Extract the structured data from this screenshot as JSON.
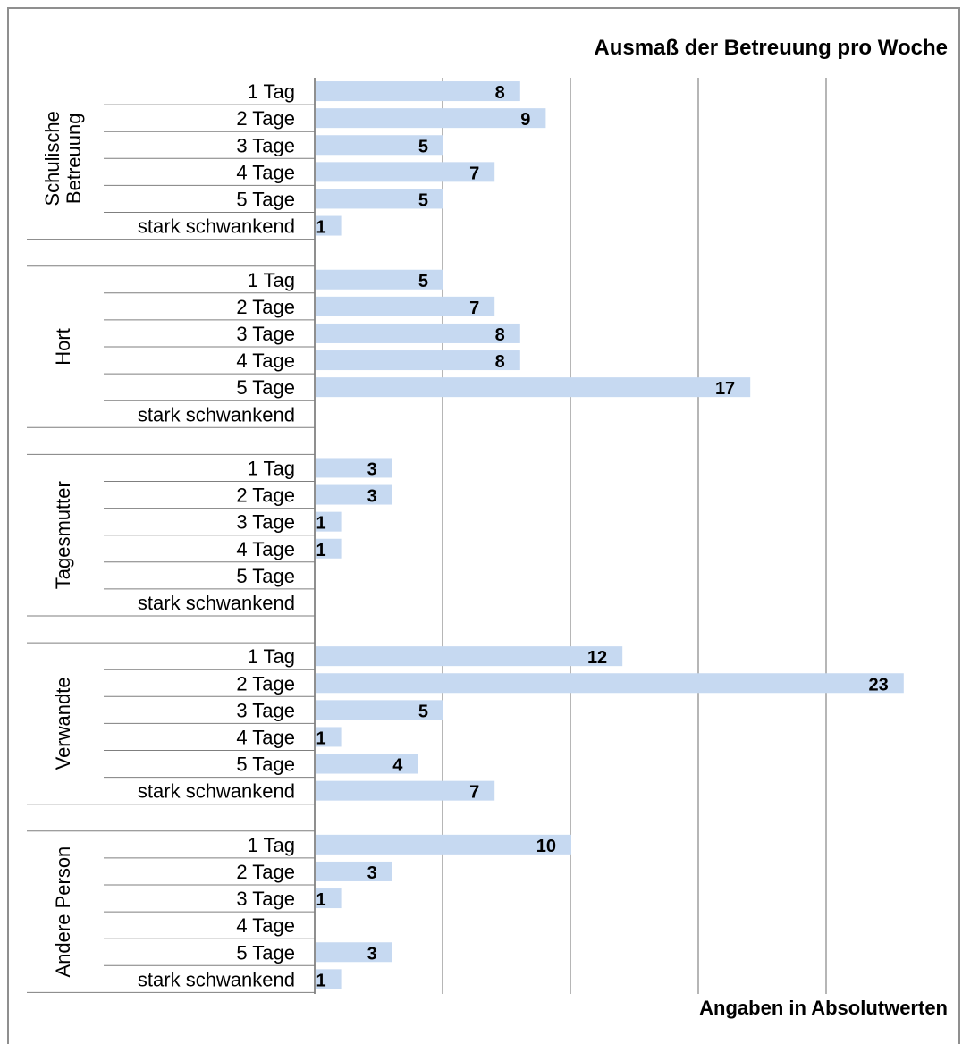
{
  "chart_data": {
    "type": "bar",
    "title": "Ausmaß der Betreuung pro Woche",
    "footnote": "Angaben in Absolutwerten",
    "xlim": [
      0,
      23
    ],
    "grid": true,
    "orientation": "horizontal",
    "categories": [
      "1 Tag",
      "2 Tage",
      "3 Tage",
      "4 Tage",
      "5 Tage",
      "stark schwankend"
    ],
    "groups": [
      {
        "label_lines": [
          "Schulische",
          "Betreuung"
        ],
        "values": [
          8,
          9,
          5,
          7,
          5,
          1
        ]
      },
      {
        "label_lines": [
          "Hort"
        ],
        "values": [
          5,
          7,
          8,
          8,
          17,
          null
        ]
      },
      {
        "label_lines": [
          "Tagesmutter"
        ],
        "values": [
          3,
          3,
          1,
          1,
          null,
          null
        ]
      },
      {
        "label_lines": [
          "Verwandte"
        ],
        "values": [
          12,
          23,
          5,
          1,
          4,
          7
        ]
      },
      {
        "label_lines": [
          "Andere Person"
        ],
        "values": [
          10,
          3,
          1,
          null,
          3,
          1
        ]
      }
    ],
    "colors": {
      "bar": "#c6d9f1",
      "grid": "#8f8f8f",
      "text": "#000000"
    }
  }
}
